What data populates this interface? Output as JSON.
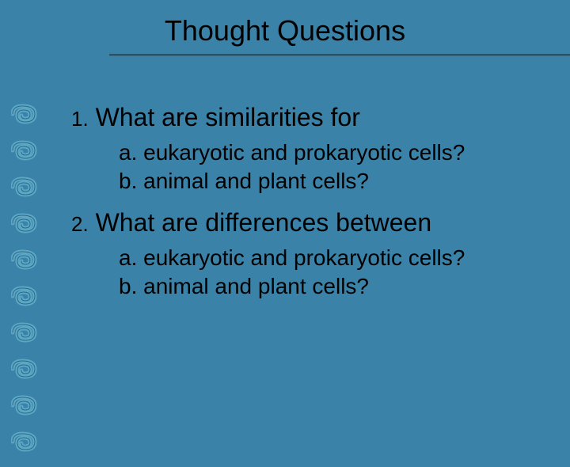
{
  "background_color": "#3b82a8",
  "title": "Thought Questions",
  "title_fontsize": 36,
  "title_color": "#000000",
  "underline_color": "#2a5c78",
  "spiral": {
    "count": 10,
    "fill_color": "#5aa8c8",
    "stroke_color": "#1a3a4a",
    "spacing": 46
  },
  "content": {
    "text_color": "#000000",
    "main_fontsize": 32,
    "sub_fontsize": 28,
    "questions": [
      {
        "num": "1.",
        "text": "What are similarities for",
        "subs": [
          {
            "label": "a.",
            "text": "eukaryotic and prokaryotic cells?"
          },
          {
            "label": "b.",
            "text": "animal and plant cells?"
          }
        ]
      },
      {
        "num": "2.",
        "text": "What are differences between",
        "subs": [
          {
            "label": "a.",
            "text": "eukaryotic and prokaryotic cells?"
          },
          {
            "label": "b.",
            "text": "animal and plant cells?"
          }
        ]
      }
    ]
  }
}
